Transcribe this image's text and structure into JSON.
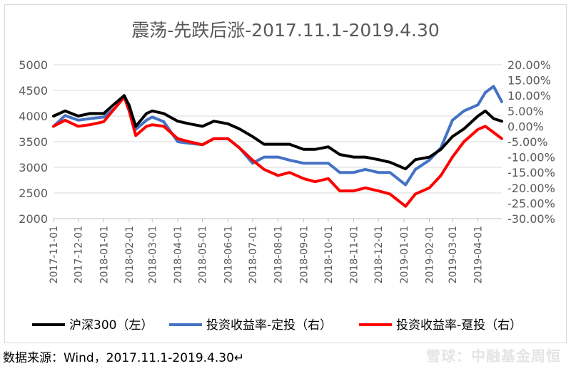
{
  "source_note": "数据来源：Wind，2017.11.1-2019.4.30↵",
  "watermark": "雪球：中融基金周恒",
  "chart_data": {
    "type": "line",
    "title": "震荡-先跌后涨-2017.11.1-2019.4.30",
    "xlabel": "",
    "ylabel": "",
    "ylim": [
      2000,
      5000
    ],
    "y2lim": [
      -0.3,
      0.2
    ],
    "y_ticks": [
      "2000",
      "2500",
      "3000",
      "3500",
      "4000",
      "4500",
      "5000"
    ],
    "y2_ticks": [
      "-30.00%",
      "-25.00%",
      "-20.00%",
      "-15.00%",
      "-10.00%",
      "-5.00%",
      "0.00%",
      "5.00%",
      "10.00%",
      "15.00%",
      "20.00%"
    ],
    "x_ticks": [
      "2017-11-01",
      "2017-12-01",
      "2018-01-01",
      "2018-02-01",
      "2018-03-01",
      "2018-04-01",
      "2018-05-01",
      "2018-06-01",
      "2018-07-01",
      "2018-08-01",
      "2018-09-01",
      "2018-10-01",
      "2018-11-01",
      "2018-12-01",
      "2019-01-01",
      "2019-02-01",
      "2019-03-01",
      "2019-04-01"
    ],
    "x": [
      "2017-11-01",
      "2017-11-15",
      "2017-12-01",
      "2017-12-15",
      "2018-01-01",
      "2018-01-15",
      "2018-01-26",
      "2018-02-01",
      "2018-02-09",
      "2018-02-22",
      "2018-03-01",
      "2018-03-15",
      "2018-04-01",
      "2018-04-15",
      "2018-05-01",
      "2018-05-15",
      "2018-06-01",
      "2018-06-15",
      "2018-07-01",
      "2018-07-15",
      "2018-08-01",
      "2018-08-15",
      "2018-09-01",
      "2018-09-15",
      "2018-10-01",
      "2018-10-15",
      "2018-11-01",
      "2018-11-15",
      "2018-12-01",
      "2018-12-15",
      "2019-01-03",
      "2019-01-15",
      "2019-02-01",
      "2019-02-15",
      "2019-03-01",
      "2019-03-15",
      "2019-04-01",
      "2019-04-10",
      "2019-04-20",
      "2019-04-30"
    ],
    "series": [
      {
        "name": "沪深300（左）",
        "axis": "left",
        "color": "#000000",
        "values": [
          4000,
          4100,
          4000,
          4050,
          4050,
          4250,
          4400,
          4200,
          3800,
          4050,
          4100,
          4050,
          3900,
          3850,
          3800,
          3900,
          3850,
          3750,
          3600,
          3450,
          3450,
          3450,
          3350,
          3350,
          3400,
          3250,
          3200,
          3200,
          3150,
          3100,
          2970,
          3150,
          3200,
          3350,
          3600,
          3750,
          4000,
          4100,
          3950,
          3900
        ]
      },
      {
        "name": "投资收益率-定投（右）",
        "axis": "right",
        "color": "#4472c4",
        "values": [
          0.0,
          0.035,
          0.02,
          0.025,
          0.03,
          0.06,
          0.095,
          0.07,
          -0.01,
          0.02,
          0.03,
          0.015,
          -0.05,
          -0.055,
          -0.06,
          -0.04,
          -0.04,
          -0.07,
          -0.12,
          -0.1,
          -0.1,
          -0.11,
          -0.12,
          -0.12,
          -0.12,
          -0.15,
          -0.15,
          -0.14,
          -0.15,
          -0.15,
          -0.19,
          -0.14,
          -0.11,
          -0.07,
          0.02,
          0.05,
          0.07,
          0.11,
          0.13,
          0.08
        ]
      },
      {
        "name": "投资收益率-趸投（右）",
        "axis": "right",
        "color": "#ff0000",
        "values": [
          0.0,
          0.02,
          0.0,
          0.005,
          0.015,
          0.06,
          0.095,
          0.05,
          -0.03,
          0.0,
          0.005,
          0.0,
          -0.04,
          -0.05,
          -0.06,
          -0.04,
          -0.04,
          -0.07,
          -0.11,
          -0.14,
          -0.16,
          -0.15,
          -0.17,
          -0.18,
          -0.17,
          -0.21,
          -0.21,
          -0.2,
          -0.21,
          -0.22,
          -0.26,
          -0.22,
          -0.2,
          -0.16,
          -0.1,
          -0.05,
          -0.01,
          0.0,
          -0.02,
          -0.04
        ]
      }
    ],
    "grid": true,
    "legend_position": "bottom"
  }
}
